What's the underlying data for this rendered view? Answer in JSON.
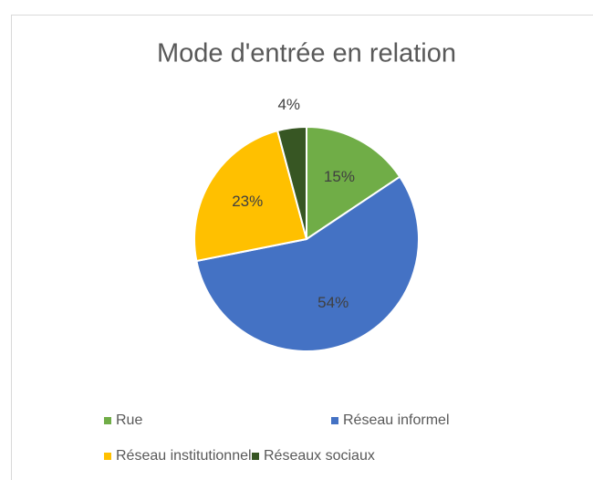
{
  "chart_data": {
    "type": "pie",
    "title": "Mode d'entrée en relation",
    "categories": [
      "Rue",
      "Réseau informel",
      "Réseau institutionnel",
      "Réseaux sociaux"
    ],
    "values": [
      15,
      54,
      23,
      4
    ],
    "value_labels": [
      "15%",
      "54%",
      "23%",
      "4%"
    ],
    "colors": [
      "#70ad47",
      "#4472c4",
      "#ffc000",
      "#375623"
    ],
    "legend": "bottom"
  }
}
